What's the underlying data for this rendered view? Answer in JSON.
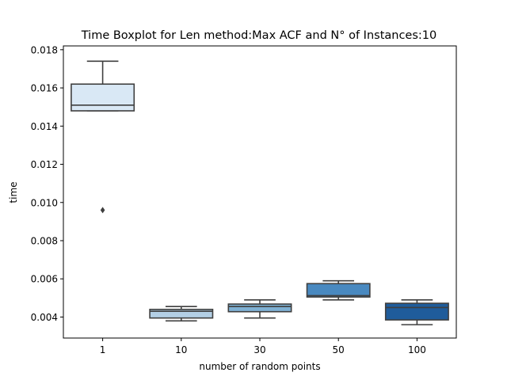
{
  "chart_data": {
    "type": "box",
    "title": "Time Boxplot for Len method:Max ACF and N° of Instances:10",
    "xlabel": "number of random points",
    "ylabel": "time",
    "categories": [
      "1",
      "10",
      "30",
      "50",
      "100"
    ],
    "ylim": [
      0.0029,
      0.0182
    ],
    "yticks": [
      0.004,
      0.006,
      0.008,
      0.01,
      0.012,
      0.014,
      0.016,
      0.018
    ],
    "ytick_labels": [
      "0.004",
      "0.006",
      "0.008",
      "0.010",
      "0.012",
      "0.014",
      "0.016",
      "0.018"
    ],
    "grid": false,
    "boxes": [
      {
        "category": "1",
        "whisker_low": 0.0148,
        "q1": 0.0148,
        "median": 0.0151,
        "q3": 0.0162,
        "whisker_high": 0.0174,
        "outliers": [
          0.0096
        ],
        "color": "#d9e8f5"
      },
      {
        "category": "10",
        "whisker_low": 0.0038,
        "q1": 0.00395,
        "median": 0.0043,
        "q3": 0.0044,
        "whisker_high": 0.00455,
        "outliers": [],
        "color": "#b3cfe5"
      },
      {
        "category": "30",
        "whisker_low": 0.00395,
        "q1": 0.00428,
        "median": 0.00455,
        "q3": 0.00468,
        "whisker_high": 0.0049,
        "outliers": [],
        "color": "#7fb1d4"
      },
      {
        "category": "50",
        "whisker_low": 0.0049,
        "q1": 0.00505,
        "median": 0.00512,
        "q3": 0.00575,
        "whisker_high": 0.0059,
        "outliers": [],
        "color": "#4989c0"
      },
      {
        "category": "100",
        "whisker_low": 0.0036,
        "q1": 0.00385,
        "median": 0.0045,
        "q3": 0.00472,
        "whisker_high": 0.0049,
        "outliers": [],
        "color": "#1f5c9b"
      }
    ]
  }
}
